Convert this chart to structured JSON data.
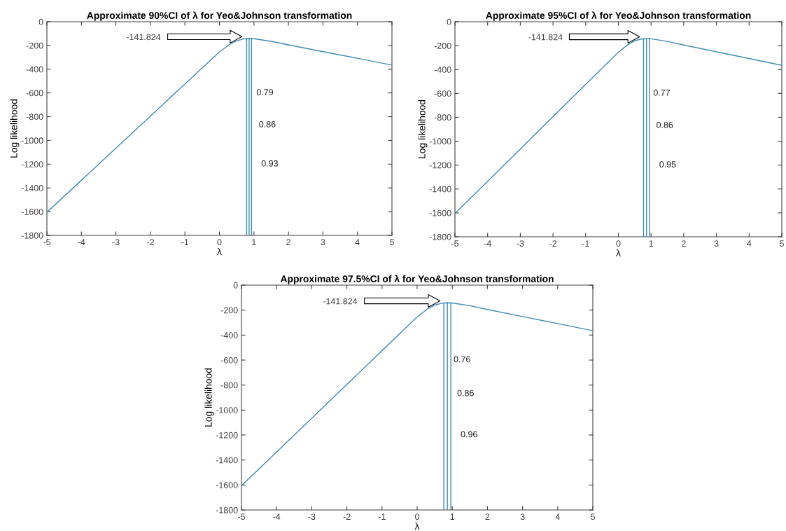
{
  "chart_data": [
    {
      "type": "line",
      "title": "Approximate 90%CI of λ for Yeo&Johnson transformation",
      "xlabel": "λ",
      "ylabel": "Log likelihood",
      "xlim": [
        -5,
        5
      ],
      "ylim": [
        -1800,
        0
      ],
      "xticks": [
        -5,
        -4,
        -3,
        -2,
        -1,
        0,
        1,
        2,
        3,
        4,
        5
      ],
      "yticks": [
        -1800,
        -1600,
        -1400,
        -1200,
        -1000,
        -800,
        -600,
        -400,
        -200,
        0
      ],
      "grid": false,
      "legend": false,
      "x": [
        -5,
        -4,
        -3,
        -2,
        -1,
        -0.5,
        0,
        0.3,
        0.5,
        0.7,
        0.86,
        1,
        1.5,
        2,
        3,
        4,
        5
      ],
      "series": [
        {
          "color": "#3d8bb5",
          "values": [
            -1605,
            -1336,
            -1065,
            -795,
            -525,
            -390,
            -255,
            -190,
            -160,
            -145,
            -141.824,
            -143,
            -165,
            -195,
            -252,
            -308,
            -365
          ]
        },
        {
          "color": "#3d8bb5",
          "x": [
            0.79,
            0.79
          ],
          "values": [
            -1800,
            -142
          ]
        },
        {
          "color": "#3d8bb5",
          "x": [
            0.86,
            0.86
          ],
          "values": [
            -1800,
            -141.824
          ]
        },
        {
          "color": "#3d8bb5",
          "x": [
            0.93,
            0.93
          ],
          "values": [
            -1800,
            -142
          ]
        }
      ],
      "annotations": [
        "-141.824",
        {
          "text": "0.79",
          "x": 0.79,
          "y": -600
        },
        {
          "text": "0.86",
          "x": 0.86,
          "y": -870
        },
        {
          "text": "0.93",
          "x": 0.93,
          "y": -1200
        }
      ]
    },
    {
      "type": "line",
      "title": "Approximate 95%CI of λ for Yeo&Johnson transformation",
      "xlabel": "λ",
      "ylabel": "Log likelihood",
      "xlim": [
        -5,
        5
      ],
      "ylim": [
        -1800,
        0
      ],
      "xticks": [
        -5,
        -4,
        -3,
        -2,
        -1,
        0,
        1,
        2,
        3,
        4,
        5
      ],
      "yticks": [
        -1800,
        -1600,
        -1400,
        -1200,
        -1000,
        -800,
        -600,
        -400,
        -200,
        0
      ],
      "grid": false,
      "legend": false,
      "x": [
        -5,
        -4,
        -3,
        -2,
        -1,
        -0.5,
        0,
        0.3,
        0.5,
        0.7,
        0.86,
        1,
        1.5,
        2,
        3,
        4,
        5
      ],
      "series": [
        {
          "color": "#3d8bb5",
          "values": [
            -1605,
            -1336,
            -1065,
            -795,
            -525,
            -390,
            -255,
            -190,
            -160,
            -145,
            -141.824,
            -143,
            -165,
            -195,
            -252,
            -308,
            -365
          ]
        },
        {
          "color": "#3d8bb5",
          "x": [
            0.77,
            0.77
          ],
          "values": [
            -1800,
            -143
          ]
        },
        {
          "color": "#3d8bb5",
          "x": [
            0.86,
            0.86
          ],
          "values": [
            -1800,
            -141.824
          ]
        },
        {
          "color": "#3d8bb5",
          "x": [
            0.95,
            0.95
          ],
          "values": [
            -1800,
            -142
          ]
        }
      ],
      "annotations": [
        "-141.824",
        {
          "text": "0.77",
          "x": 0.77,
          "y": -600
        },
        {
          "text": "0.86",
          "x": 0.86,
          "y": -870
        },
        {
          "text": "0.95",
          "x": 0.95,
          "y": -1200
        }
      ]
    },
    {
      "type": "line",
      "title": "Approximate 97.5%CI of λ for Yeo&Johnson transformation",
      "xlabel": "λ",
      "ylabel": "Log likelihood",
      "xlim": [
        -5,
        5
      ],
      "ylim": [
        -1800,
        0
      ],
      "xticks": [
        -5,
        -4,
        -3,
        -2,
        -1,
        0,
        1,
        2,
        3,
        4,
        5
      ],
      "yticks": [
        -1800,
        -1600,
        -1400,
        -1200,
        -1000,
        -800,
        -600,
        -400,
        -200,
        0
      ],
      "grid": false,
      "legend": false,
      "x": [
        -5,
        -4,
        -3,
        -2,
        -1,
        -0.5,
        0,
        0.3,
        0.5,
        0.7,
        0.86,
        1,
        1.5,
        2,
        3,
        4,
        5
      ],
      "series": [
        {
          "color": "#3d8bb5",
          "values": [
            -1605,
            -1336,
            -1065,
            -795,
            -525,
            -390,
            -255,
            -190,
            -160,
            -145,
            -141.824,
            -143,
            -165,
            -195,
            -252,
            -308,
            -365
          ]
        },
        {
          "color": "#3d8bb5",
          "x": [
            0.76,
            0.76
          ],
          "values": [
            -1800,
            -143
          ]
        },
        {
          "color": "#3d8bb5",
          "x": [
            0.86,
            0.86
          ],
          "values": [
            -1800,
            -141.824
          ]
        },
        {
          "color": "#3d8bb5",
          "x": [
            0.96,
            0.96
          ],
          "values": [
            -1800,
            -142
          ]
        }
      ],
      "annotations": [
        "-141.824",
        {
          "text": "0.76",
          "x": 0.76,
          "y": -600
        },
        {
          "text": "0.86",
          "x": 0.86,
          "y": -870
        },
        {
          "text": "0.96",
          "x": 0.96,
          "y": -1200
        }
      ]
    }
  ]
}
